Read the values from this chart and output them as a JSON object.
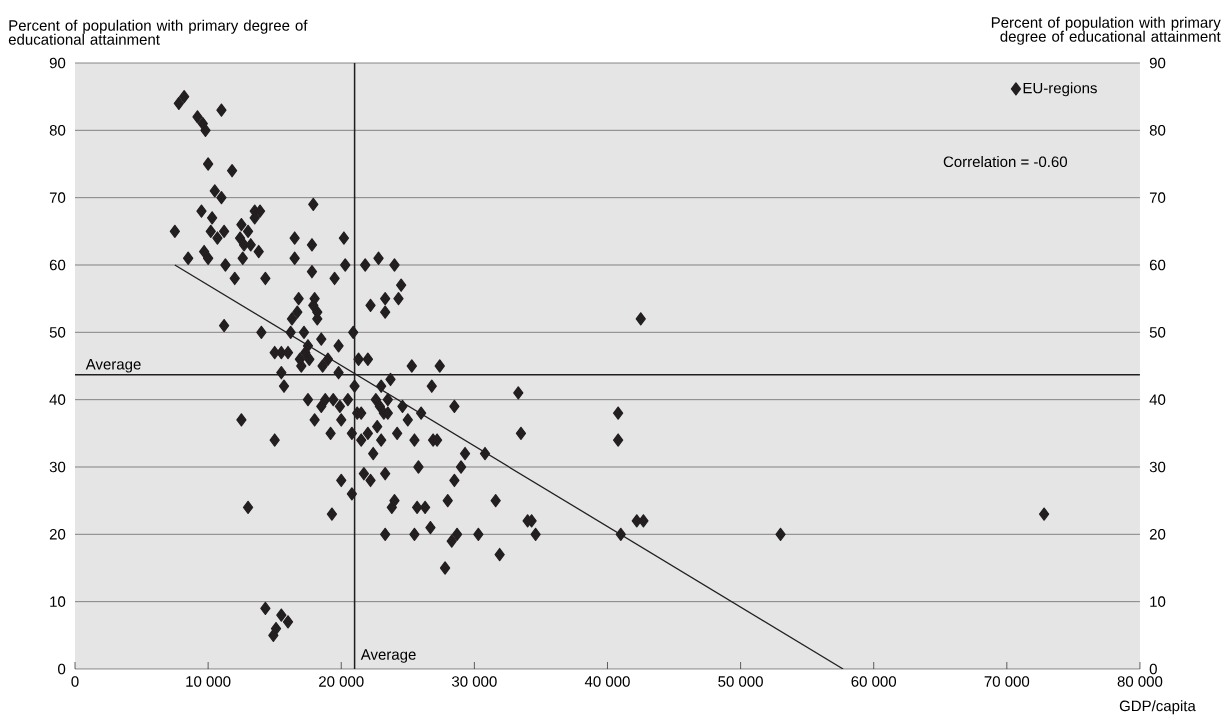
{
  "chart_data": {
    "type": "scatter",
    "ylabel": "Percent of population with primary degree of educational attainment",
    "y2label": "Percent of population with primary degree of educational attainment",
    "xlabel": "GDP/capita",
    "xlim": [
      0,
      80000
    ],
    "ylim": [
      0,
      90
    ],
    "y2lim": [
      0,
      90
    ],
    "xticks": [
      0,
      {
        "value": 10000,
        "label": "10 000"
      },
      {
        "value": 20000,
        "label": "20 000"
      },
      {
        "value": 30000,
        "label": "30 000"
      },
      {
        "value": 40000,
        "label": "40 000"
      },
      {
        "value": 50000,
        "label": "50 000"
      },
      {
        "value": 60000,
        "label": "60 000"
      },
      {
        "value": 70000,
        "label": "70 000"
      },
      {
        "value": 80000,
        "label": "80 000"
      }
    ],
    "yticks": [
      0,
      10,
      20,
      30,
      40,
      50,
      60,
      70,
      80,
      90
    ],
    "y2ticks": [
      0,
      10,
      20,
      30,
      40,
      50,
      60,
      70,
      80,
      90
    ],
    "grid": "y",
    "legend": "top right",
    "marker": "diamond",
    "ref_lines": [
      {
        "axis": "y",
        "value": 43.7,
        "label": "Average",
        "color": "#231f20"
      },
      {
        "axis": "x",
        "value": 21000,
        "label": "Average",
        "color": "#231f20"
      }
    ],
    "annotations": [
      "Correlation = -0.60"
    ],
    "series": [
      {
        "name": "EU-regions",
        "color": "#231f20",
        "x": [
          7500,
          7800,
          8200,
          8500,
          9200,
          9600,
          9800,
          9500,
          9700,
          10000,
          10200,
          10300,
          10000,
          10500,
          10700,
          11000,
          11000,
          11200,
          11300,
          11200,
          11800,
          12000,
          12500,
          12400,
          12600,
          12700,
          13000,
          13200,
          13500,
          13500,
          13900,
          13800,
          14000,
          14300,
          12500,
          13000,
          15000,
          14300,
          14900,
          15100,
          15500,
          16000,
          15000,
          15500,
          15500,
          15700,
          16000,
          16200,
          16300,
          16500,
          16500,
          16700,
          16800,
          16900,
          17000,
          17200,
          17300,
          17500,
          17500,
          17600,
          17800,
          17800,
          17900,
          17900,
          18000,
          18200,
          18200,
          18000,
          18500,
          18600,
          18500,
          18800,
          19000,
          19200,
          19300,
          19400,
          19500,
          19800,
          19800,
          19900,
          20000,
          20000,
          20200,
          20300,
          20500,
          20800,
          20800,
          20900,
          21000,
          21200,
          21300,
          21500,
          21500,
          21700,
          21800,
          22000,
          22000,
          22200,
          22200,
          22400,
          22600,
          22700,
          22800,
          22900,
          23000,
          23000,
          23200,
          23300,
          23300,
          23300,
          23300,
          23500,
          23500,
          23700,
          23800,
          24000,
          24000,
          24200,
          24300,
          24500,
          24600,
          25000,
          25300,
          25500,
          25500,
          25700,
          25800,
          26000,
          26300,
          26700,
          26800,
          26900,
          27200,
          27400,
          27800,
          28000,
          28300,
          28500,
          28500,
          28700,
          29000,
          29300,
          30300,
          30800,
          31600,
          31900,
          33300,
          33500,
          34000,
          34300,
          34600,
          40800,
          40800,
          41000,
          42200,
          42700,
          42500,
          53000,
          72800
        ],
        "values": [
          65,
          84,
          85,
          61,
          82,
          81,
          80,
          68,
          62,
          75,
          65,
          67,
          61,
          71,
          64,
          70,
          83,
          65,
          60,
          51,
          74,
          58,
          66,
          64,
          61,
          63,
          65,
          63,
          68,
          67,
          68,
          62,
          50,
          58,
          37,
          24,
          34,
          9,
          5,
          6,
          8,
          7,
          47,
          47,
          44,
          42,
          47,
          50,
          52,
          61,
          64,
          53,
          55,
          46,
          45,
          50,
          47,
          48,
          40,
          46,
          63,
          59,
          69,
          54,
          55,
          53,
          52,
          37,
          49,
          45,
          39,
          40,
          46,
          35,
          23,
          40,
          58,
          44,
          48,
          39,
          37,
          28,
          64,
          60,
          40,
          26,
          35,
          50,
          42,
          38,
          46,
          34,
          38,
          29,
          60,
          35,
          46,
          54,
          28,
          32,
          40,
          36,
          61,
          39,
          34,
          42,
          38,
          55,
          53,
          29,
          20,
          40,
          38,
          43,
          24,
          60,
          25,
          35,
          55,
          57,
          39,
          37,
          45,
          20,
          34,
          24,
          30,
          38,
          24,
          21,
          42,
          34,
          34,
          45,
          15,
          25,
          19,
          28,
          39,
          20,
          30,
          32,
          20,
          32,
          25,
          17,
          41,
          35,
          22,
          22,
          20,
          38,
          34,
          20,
          22,
          22,
          52,
          20,
          23
        ]
      },
      {
        "type": "line",
        "color": "#231f20",
        "marker": "none",
        "x": [
          7500,
          57700
        ],
        "values": [
          60,
          0
        ]
      }
    ]
  }
}
